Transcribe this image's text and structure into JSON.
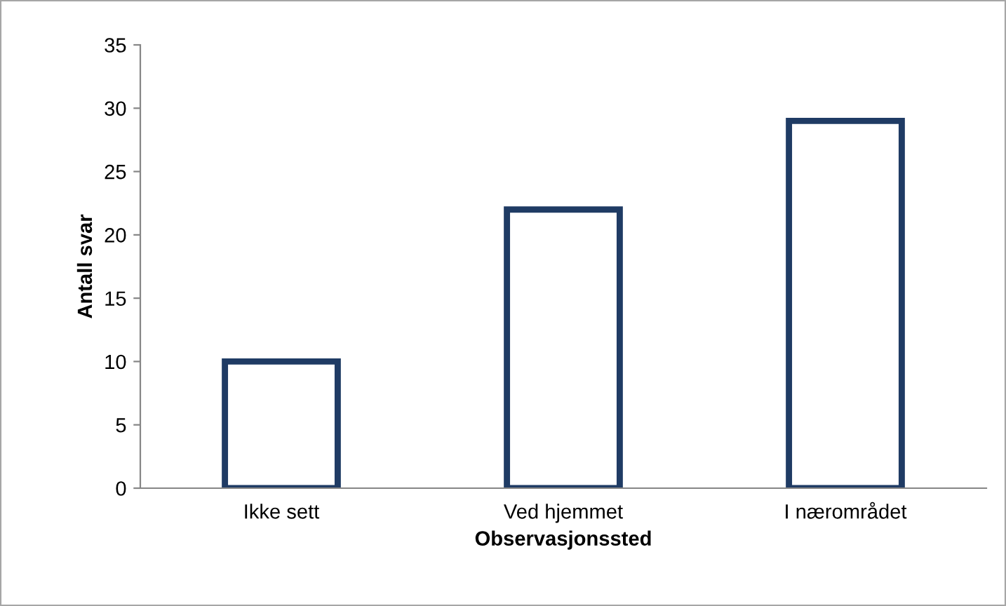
{
  "chart_data": {
    "type": "bar",
    "xlabel": "Observasjonssted",
    "ylabel": "Antall svar",
    "categories": [
      "Ikke sett",
      "Ved hjemmet",
      "I nærområdet"
    ],
    "values": [
      10,
      22,
      29
    ],
    "color": "#1f3b64",
    "ylim": [
      0,
      35
    ],
    "yticks": [
      0,
      5,
      10,
      15,
      20,
      25,
      30,
      35
    ],
    "grid": false,
    "legend": false
  }
}
